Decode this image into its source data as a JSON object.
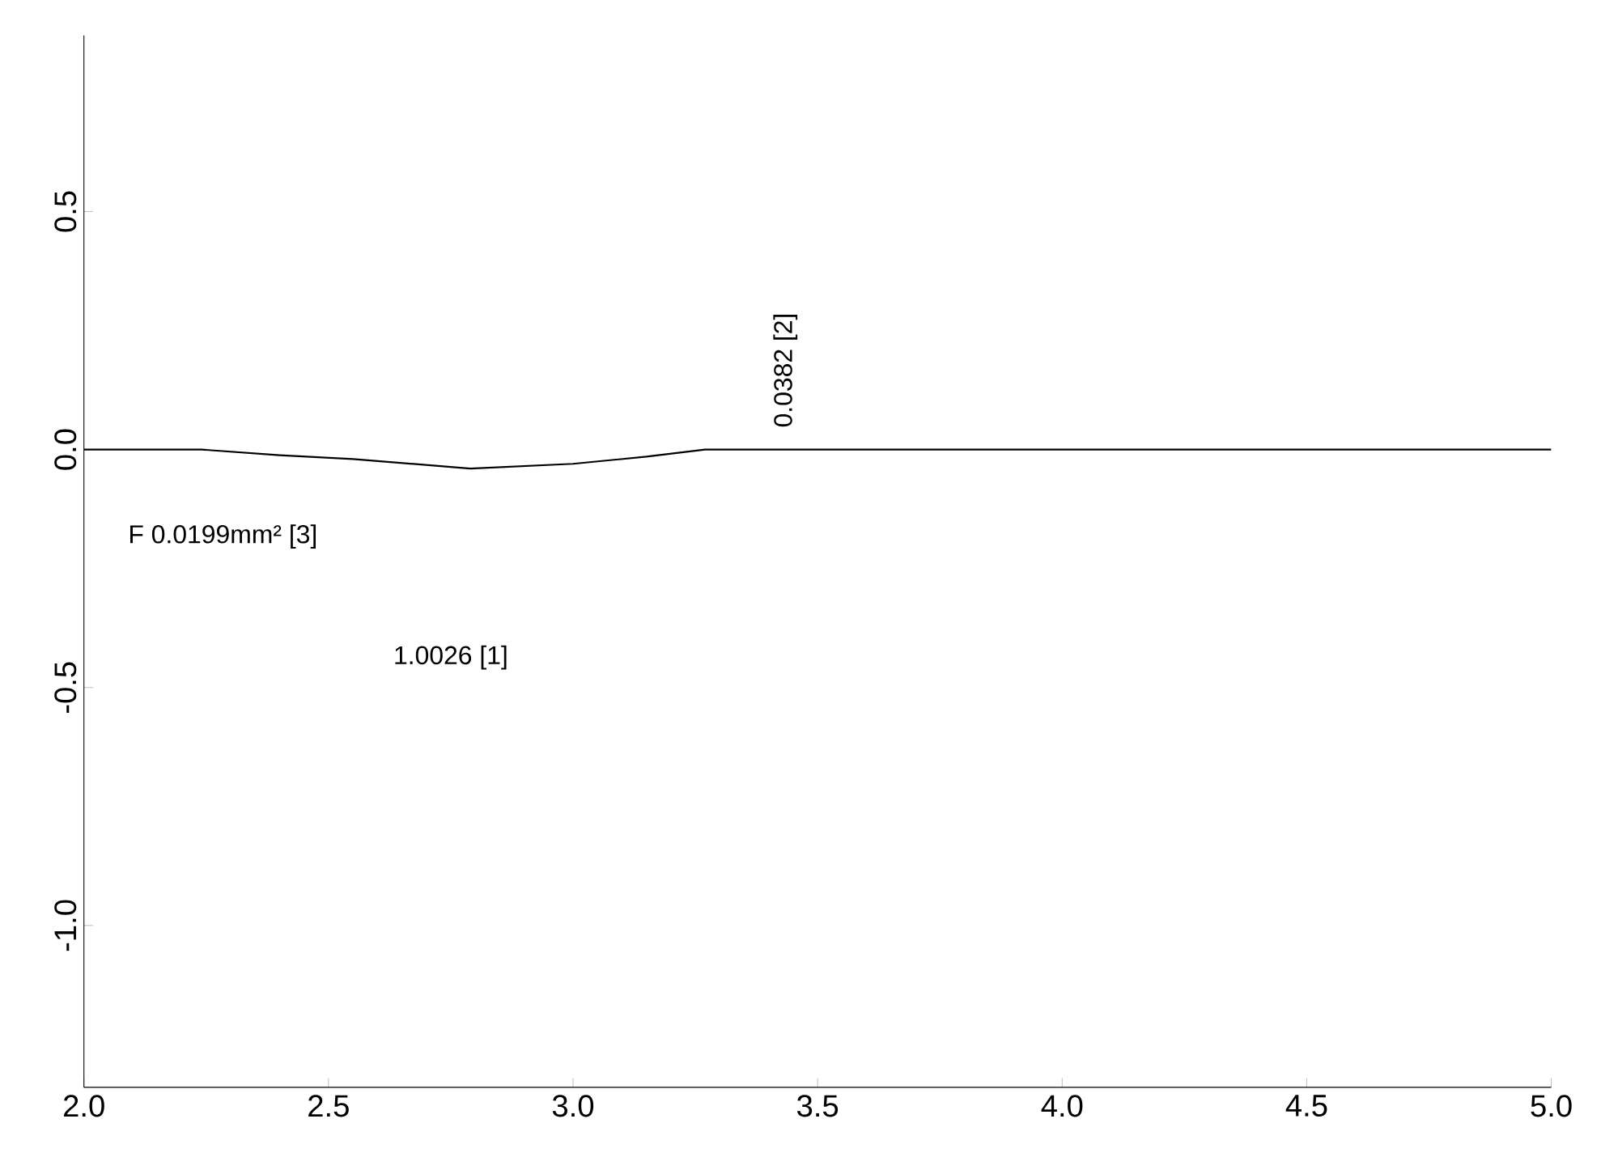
{
  "chart_data": {
    "type": "line",
    "color": "#000000",
    "x": [
      2.0,
      2.24,
      2.4,
      2.55,
      2.79,
      3.0,
      3.15,
      3.27,
      5.0
    ],
    "values": [
      0,
      0,
      -0.012,
      -0.02,
      -0.04,
      -0.03,
      -0.015,
      0,
      0
    ],
    "xlim": [
      2.0,
      5.0
    ],
    "ylim": [
      -1.34,
      0.87
    ],
    "xticks": [
      {
        "value": 2.0,
        "label": "2.0"
      },
      {
        "value": 2.5,
        "label": "2.5"
      },
      {
        "value": 3.0,
        "label": "3.0"
      },
      {
        "value": 3.5,
        "label": "3.5"
      },
      {
        "value": 4.0,
        "label": "4.0"
      },
      {
        "value": 4.5,
        "label": "4.5"
      },
      {
        "value": 5.0,
        "label": "5.0"
      }
    ],
    "yticks": [
      {
        "value": -1.0,
        "label": "-1.0"
      },
      {
        "value": -0.5,
        "label": "-0.5"
      },
      {
        "value": 0.0,
        "label": "0.0"
      },
      {
        "value": 0.5,
        "label": "0.5"
      }
    ],
    "annotations": [
      "1.0026 [1]",
      "0.0382 [2]",
      "F 0.0199mm² [3]"
    ],
    "grid": false,
    "marker": "none",
    "line_style": "solid"
  }
}
